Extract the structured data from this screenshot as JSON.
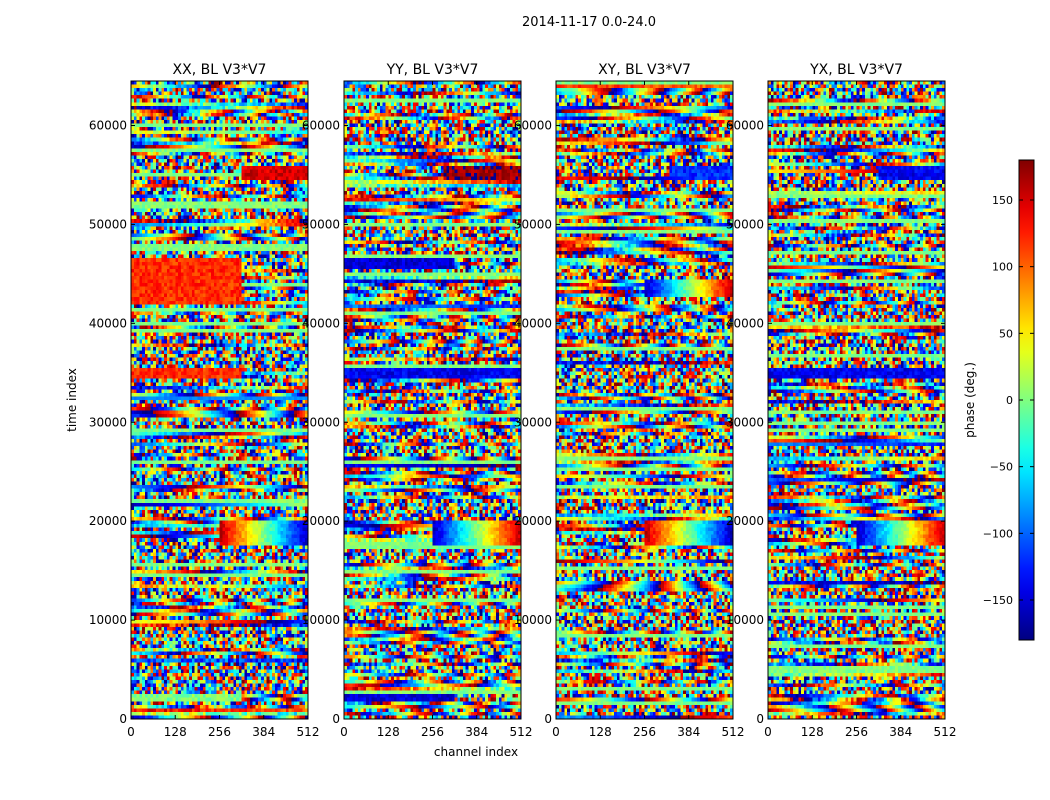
{
  "figure": {
    "suptitle": "2014-11-17 0.0-24.0"
  },
  "chart_data": [
    {
      "type": "heatmap",
      "title": "XX, BL V3*V7",
      "xlabel": "",
      "ylabel": "time index",
      "x_ticks": [
        "0",
        "128",
        "256",
        "384",
        "512"
      ],
      "y_ticks": [
        "0",
        "10000",
        "20000",
        "30000",
        "40000",
        "50000",
        "60000"
      ],
      "xlim": [
        0,
        512
      ],
      "ylim": [
        0,
        64500
      ],
      "z_label": "phase (deg.)",
      "z_range": [
        -180,
        180
      ],
      "notable_bands": [
        {
          "time": [
            1800,
            2400
          ],
          "phase": "near 0 / mixed (green-yellow)",
          "channels": [
            0,
            320
          ]
        },
        {
          "time": [
            17500,
            20000
          ],
          "phase": "smooth gradient, red to blue",
          "channels": [
            256,
            512
          ]
        },
        {
          "time": [
            34500,
            35500
          ],
          "phase": "~+120 (orange-red)",
          "channels": [
            0,
            320
          ]
        },
        {
          "time": [
            42000,
            46500
          ],
          "phase": "~+120 (orange)",
          "channels": [
            0,
            320
          ]
        },
        {
          "time": [
            54300,
            55800
          ],
          "phase": "~+150 (red)",
          "channels": [
            320,
            512
          ]
        }
      ]
    },
    {
      "type": "heatmap",
      "title": "YY, BL V3*V7",
      "xlabel": "channel index",
      "ylabel": "",
      "x_ticks": [
        "0",
        "128",
        "256",
        "384",
        "512"
      ],
      "y_ticks": [
        "0",
        "10000",
        "20000",
        "30000",
        "40000",
        "50000",
        "60000"
      ],
      "xlim": [
        0,
        512
      ],
      "ylim": [
        0,
        64500
      ],
      "z_label": "phase (deg.)",
      "z_range": [
        -180,
        180
      ],
      "notable_bands": [
        {
          "time": [
            1800,
            2400
          ],
          "phase": "~-150 (blue)",
          "channels": [
            0,
            320
          ]
        },
        {
          "time": [
            17500,
            20000
          ],
          "phase": "smooth gradient, blue to red",
          "channels": [
            256,
            512
          ]
        },
        {
          "time": [
            34500,
            35500
          ],
          "phase": "~-140 (blue)",
          "channels": [
            0,
            512
          ]
        },
        {
          "time": [
            45500,
            46500
          ],
          "phase": "~-150 (blue)",
          "channels": [
            0,
            320
          ]
        },
        {
          "time": [
            54300,
            55800
          ],
          "phase": "~+170 (red)",
          "channels": [
            290,
            512
          ]
        }
      ]
    },
    {
      "type": "heatmap",
      "title": "XY, BL V3*V7",
      "xlabel": "",
      "ylabel": "",
      "x_ticks": [
        "0",
        "128",
        "256",
        "384",
        "512"
      ],
      "y_ticks": [
        "0",
        "10000",
        "20000",
        "30000",
        "40000",
        "50000",
        "60000"
      ],
      "xlim": [
        0,
        512
      ],
      "ylim": [
        0,
        64500
      ],
      "z_label": "phase (deg.)",
      "z_range": [
        -180,
        180
      ],
      "notable_bands": [
        {
          "time": [
            17500,
            20000
          ],
          "phase": "smooth gradient, red to blue",
          "channels": [
            256,
            512
          ]
        },
        {
          "time": [
            42500,
            44500
          ],
          "phase": "smooth gradient",
          "channels": [
            256,
            512
          ]
        },
        {
          "time": [
            54300,
            55800
          ],
          "phase": "~-120 (blue)",
          "channels": [
            330,
            512
          ]
        }
      ]
    },
    {
      "type": "heatmap",
      "title": "YX, BL V3*V7",
      "xlabel": "",
      "ylabel": "",
      "x_ticks": [
        "0",
        "128",
        "256",
        "384",
        "512"
      ],
      "y_ticks": [
        "0",
        "10000",
        "20000",
        "30000",
        "40000",
        "50000",
        "60000"
      ],
      "xlim": [
        0,
        512
      ],
      "ylim": [
        0,
        64500
      ],
      "z_label": "phase (deg.)",
      "z_range": [
        -180,
        180
      ],
      "notable_bands": [
        {
          "time": [
            17500,
            20000
          ],
          "phase": "smooth gradient, blue to red",
          "channels": [
            256,
            512
          ]
        },
        {
          "time": [
            34500,
            35500
          ],
          "phase": "~-140 (blue)",
          "channels": [
            0,
            512
          ]
        },
        {
          "time": [
            54300,
            55800
          ],
          "phase": "~-140 (blue)",
          "channels": [
            320,
            512
          ]
        }
      ]
    }
  ],
  "colorbar": {
    "label": "phase (deg.)",
    "range": [
      -180,
      180
    ],
    "ticks": [
      "−150",
      "−100",
      "−50",
      "0",
      "50",
      "100",
      "150"
    ],
    "tick_values": [
      -150,
      -100,
      -50,
      0,
      50,
      100,
      150
    ],
    "colormap": "jet",
    "colors": [
      "#00007f",
      "#0000ff",
      "#007fff",
      "#00ffff",
      "#7fff7f",
      "#ffff00",
      "#ff7f00",
      "#ff0000",
      "#7f0000"
    ]
  }
}
